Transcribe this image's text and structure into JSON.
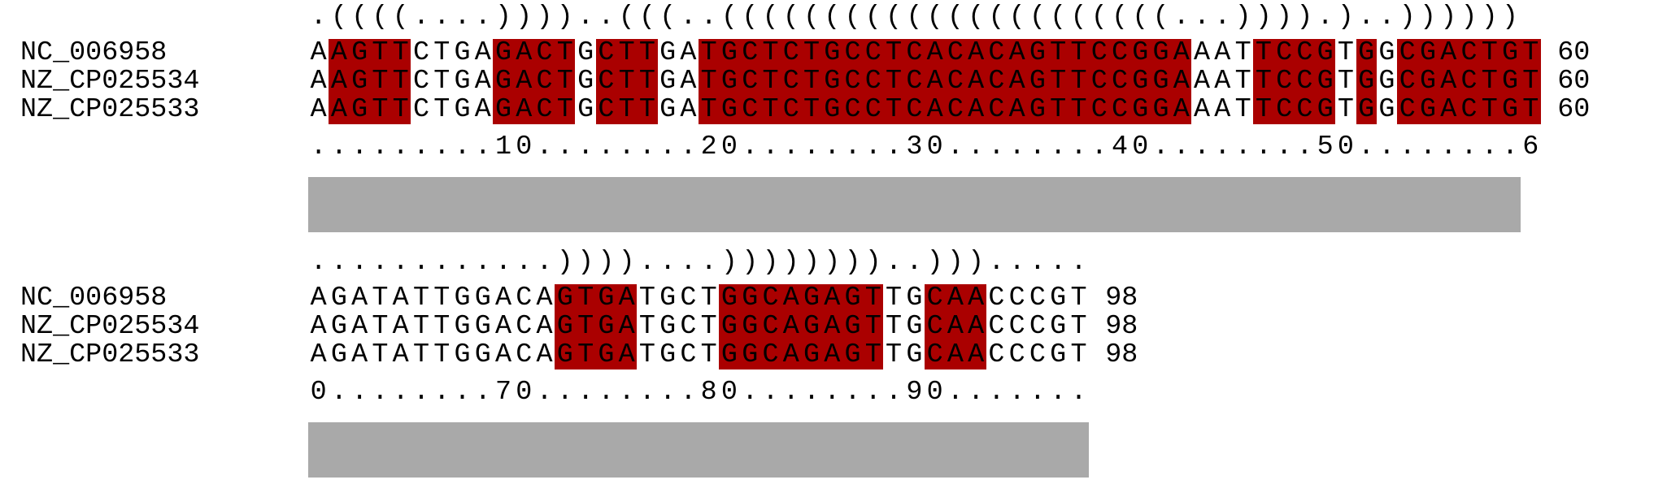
{
  "blocks": [
    {
      "structure": ".((((....))))..(((..((((((((((((((((((((((...)))).)..))))))",
      "ruler": ".........10........20........30........40........50........6",
      "sequences": [
        {
          "name": "NC_006958",
          "seq": "AAGTTCTGAGACTGCTTGATGCTCTGCCTCACACAGTTCCGGAAATTCCGTGGCGACTGT",
          "end": "60"
        },
        {
          "name": "NZ_CP025534",
          "seq": "AAGTTCTGAGACTGCTTGATGCTCTGCCTCACACAGTTCCGGAAATTCCGTGGCGACTGT",
          "end": "60"
        },
        {
          "name": "NZ_CP025533",
          "seq": "AAGTTCTGAGACTGCTTGATGCTCTGCCTCACACAGTTCCGGAAATTCCGTGGCGACTGT",
          "end": "60"
        }
      ],
      "highlight_mask": "011110000111101110011111111111111111111111100011110101111111"
    },
    {
      "structure": "............))))....))))))))..))).....",
      "ruler": "0........70........80........90.......",
      "sequences": [
        {
          "name": "NC_006958",
          "seq": "AGATATTGGACAGTGATGCTGGCAGAGTTGCAACCCGT",
          "end": "98"
        },
        {
          "name": "NZ_CP025534",
          "seq": "AGATATTGGACAGTGATGCTGGCAGAGTTGCAACCCGT",
          "end": "98"
        },
        {
          "name": "NZ_CP025533",
          "seq": "AGATATTGGACAGTGATGCTGGCAGAGTTGCAACCCGT",
          "end": "98"
        }
      ],
      "highlight_mask": "00000000000011110000111111110011100000"
    }
  ],
  "colors": {
    "highlight": "#aa0000",
    "conservation_bar": "#a9a9a9",
    "text": "#000000"
  }
}
